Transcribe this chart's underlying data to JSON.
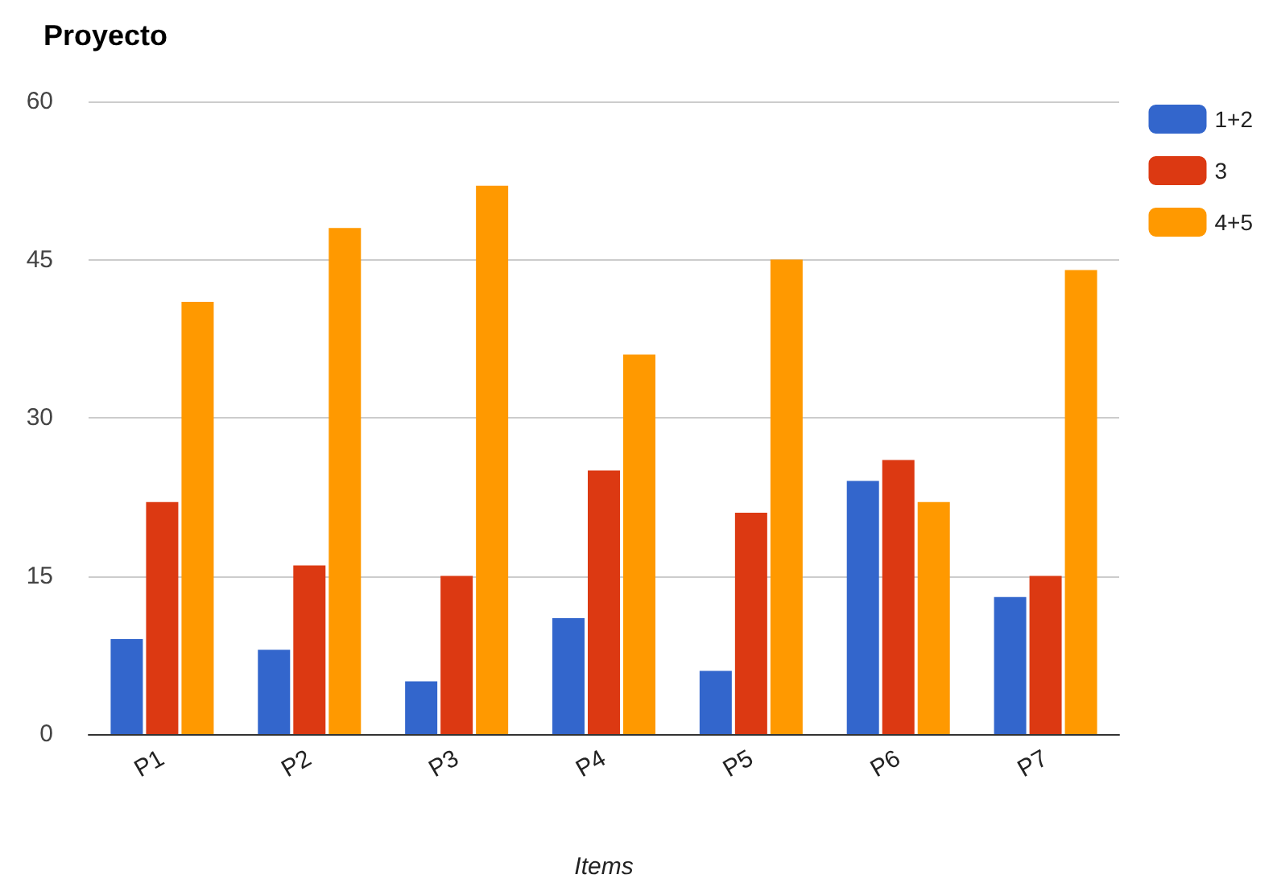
{
  "chart_data": {
    "type": "bar",
    "title": "Proyecto",
    "xlabel": "Items",
    "categories": [
      "P1",
      "P2",
      "P3",
      "P4",
      "P5",
      "P6",
      "P7"
    ],
    "series": [
      {
        "name": "1+2",
        "color": "#3366cc",
        "values": [
          9,
          8,
          5,
          11,
          6,
          24,
          13
        ]
      },
      {
        "name": "3",
        "color": "#dc3912",
        "values": [
          22,
          16,
          15,
          25,
          21,
          26,
          15
        ]
      },
      {
        "name": "4+5",
        "color": "#ff9900",
        "values": [
          41,
          48,
          52,
          36,
          45,
          22,
          44
        ]
      }
    ],
    "ylim": [
      0,
      60
    ],
    "yticks": [
      0,
      15,
      30,
      45,
      60
    ],
    "grid": "y",
    "legend": "right"
  }
}
